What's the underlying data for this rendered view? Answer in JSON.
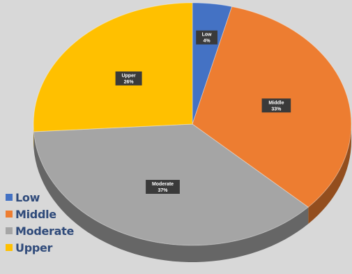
{
  "chart_data": {
    "type": "pie",
    "title": "",
    "three_d": true,
    "legend_position": "bottom-left",
    "slices": [
      {
        "label": "Low",
        "value": 4,
        "percent_label": "4%",
        "color": "#4472c4"
      },
      {
        "label": "Middle",
        "value": 33,
        "percent_label": "33%",
        "color": "#ed7d31"
      },
      {
        "label": "Moderate",
        "value": 37,
        "percent_label": "37%",
        "color": "#a5a5a5"
      },
      {
        "label": "Upper",
        "value": 26,
        "percent_label": "26%",
        "color": "#ffc000"
      }
    ]
  },
  "legend": {
    "items": [
      {
        "label": "Low",
        "color": "#4472c4"
      },
      {
        "label": "Middle",
        "color": "#ed7d31"
      },
      {
        "label": "Moderate",
        "color": "#a5a5a5"
      },
      {
        "label": "Upper",
        "color": "#ffc000"
      }
    ]
  }
}
